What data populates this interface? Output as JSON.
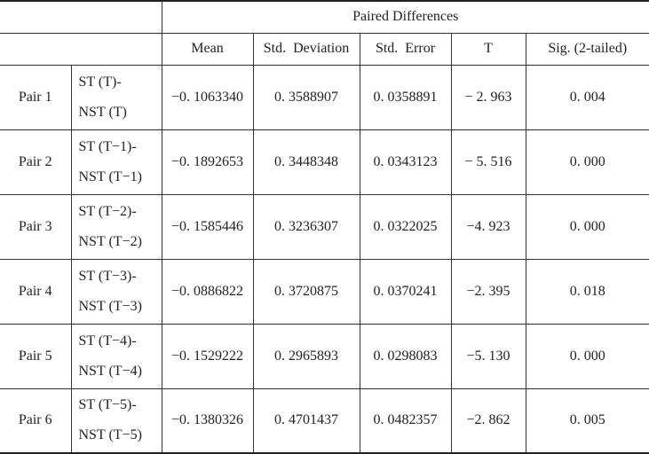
{
  "table": {
    "group_header": "Paired Differences",
    "columns": [
      "Mean",
      "Std.  Deviation",
      "Std.  Error",
      "T",
      "Sig. (2-tailed)"
    ],
    "rows": [
      {
        "pair": "Pair 1",
        "comparison": [
          "ST (T)-",
          "NST (T)"
        ],
        "cells": [
          "−0. 1063340",
          "0. 3588907",
          "0. 0358891",
          "− 2. 963",
          "0. 004"
        ]
      },
      {
        "pair": "Pair 2",
        "comparison": [
          "ST (T−1)-",
          "NST (T−1)"
        ],
        "cells": [
          "−0. 1892653",
          "0. 3448348",
          "0. 0343123",
          "− 5. 516",
          "0. 000"
        ]
      },
      {
        "pair": "Pair 3",
        "comparison": [
          "ST (T−2)-",
          "NST (T−2)"
        ],
        "cells": [
          "−0. 1585446",
          "0. 3236307",
          "0. 0322025",
          "−4. 923",
          "0. 000"
        ]
      },
      {
        "pair": "Pair 4",
        "comparison": [
          "ST (T−3)-",
          "NST (T−3)"
        ],
        "cells": [
          "−0. 0886822",
          "0. 3720875",
          "0. 0370241",
          "−2. 395",
          "0. 018"
        ]
      },
      {
        "pair": "Pair 5",
        "comparison": [
          "ST (T−4)-",
          "NST (T−4)"
        ],
        "cells": [
          "−0. 1529222",
          "0. 2965893",
          "0. 0298083",
          "−5. 130",
          "0. 000"
        ]
      },
      {
        "pair": "Pair 6",
        "comparison": [
          "ST (T−5)-",
          "NST (T−5)"
        ],
        "cells": [
          "−0. 1380326",
          "0. 4701437",
          "0. 0482357",
          "−2. 862",
          "0. 005"
        ]
      }
    ]
  }
}
